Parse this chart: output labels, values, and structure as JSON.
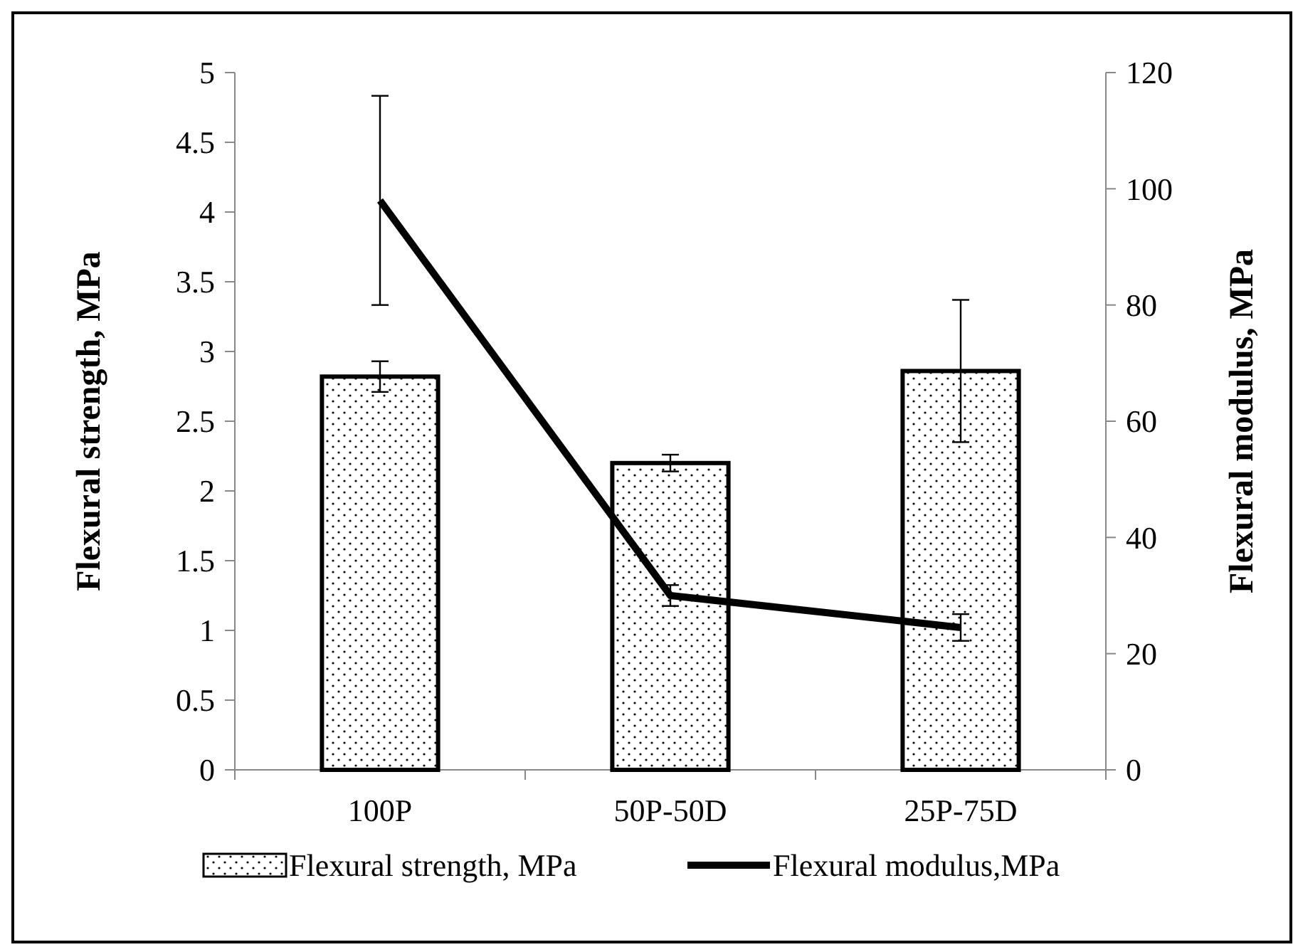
{
  "chart_data": {
    "type": "bar",
    "categories": [
      "100P",
      "50P-50D",
      "25P-75D"
    ],
    "ylabel": "Flexural strength, MPa",
    "y2label": "Flexural modulus, MPa",
    "series": [
      {
        "name": "Flexural strength, MPa",
        "color": "#000000",
        "values": [
          2.82,
          2.2,
          2.86
        ],
        "errors": [
          0.11,
          0.06,
          0.51
        ]
      },
      {
        "name": "Flexural modulus,MPa",
        "type": "line",
        "axis": "y2",
        "color": "#000000",
        "values": [
          98,
          30,
          24.5
        ],
        "errors": [
          18,
          1.8,
          2.3
        ],
        "marker": "none",
        "line_style": "solid"
      }
    ],
    "ylim": [
      0,
      5
    ],
    "yticks": [
      0,
      0.5,
      1,
      1.5,
      2,
      2.5,
      3,
      3.5,
      4,
      4.5,
      5
    ],
    "y2lim": [
      0,
      120
    ],
    "y2ticks": [
      0,
      20,
      40,
      60,
      80,
      100,
      120
    ],
    "grid": false,
    "legend": "bottom"
  }
}
